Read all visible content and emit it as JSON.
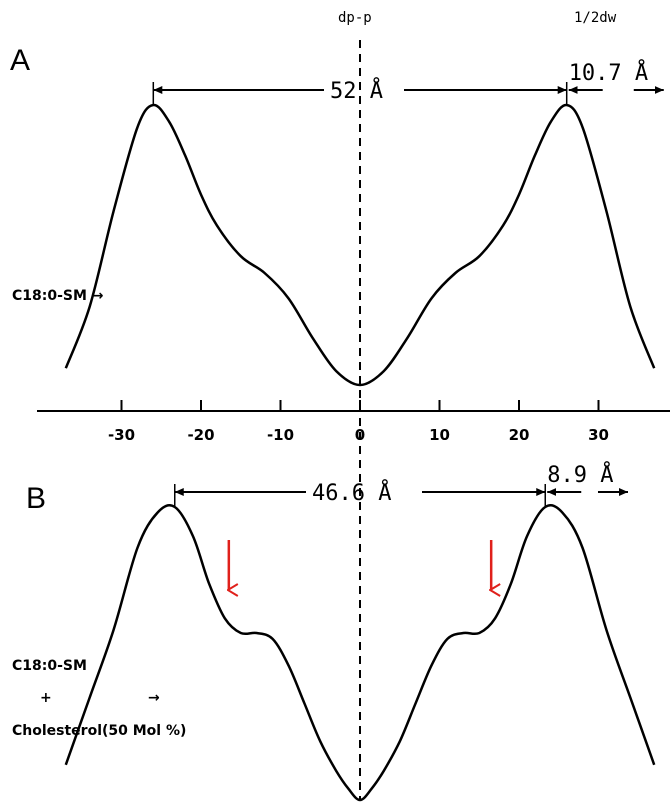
{
  "header": {
    "center_label": "dp-p",
    "right_label": "1/2dw"
  },
  "chart_data": [
    {
      "type": "line",
      "panel_label": "A",
      "sample_label": "C18:0-SM →",
      "xlim": [
        -38,
        38
      ],
      "xticks": [
        -30,
        -20,
        -10,
        0,
        10,
        20,
        30
      ],
      "tick_labels": [
        "-30",
        "-20",
        "-10",
        "0",
        "10",
        "20",
        "30"
      ],
      "measurements": {
        "dp_p": {
          "label": "52 Å",
          "from": -26,
          "to": 26
        },
        "half_dw": {
          "label": "10.7 Å",
          "from": 26,
          "to": 36.7
        }
      },
      "series": [
        {
          "x": [
            -37,
            -34,
            -31,
            -28,
            -26,
            -24,
            -22,
            -20,
            -18,
            -15,
            -12,
            -9,
            -6,
            -3,
            0,
            3,
            6,
            9,
            12,
            15,
            18,
            20,
            22,
            24,
            26,
            28,
            31,
            34,
            37
          ],
          "y": [
            0.06,
            0.28,
            0.62,
            0.92,
            1.0,
            0.94,
            0.82,
            0.68,
            0.57,
            0.46,
            0.4,
            0.31,
            0.17,
            0.05,
            0.0,
            0.05,
            0.17,
            0.31,
            0.4,
            0.46,
            0.57,
            0.68,
            0.82,
            0.94,
            1.0,
            0.92,
            0.62,
            0.28,
            0.06
          ]
        }
      ]
    },
    {
      "type": "line",
      "panel_label": "B",
      "sample_label_lines": [
        "C18:0-SM",
        "+",
        "Cholesterol(50 Mol %)"
      ],
      "sample_arrow": "→",
      "xlim": [
        -38,
        38
      ],
      "measurements": {
        "dp_p": {
          "label": "46.6 Å",
          "from": -23.3,
          "to": 23.3
        },
        "half_dw": {
          "label": "8.9 Å",
          "from": 23.3,
          "to": 32.2
        }
      },
      "annotation_arrows": {
        "x": [
          -16.5,
          16.5
        ],
        "color": "#e0201b"
      },
      "series": [
        {
          "x": [
            -37,
            -34,
            -31,
            -28,
            -25.5,
            -23.3,
            -21,
            -19,
            -17,
            -15,
            -13,
            -11,
            -9,
            -7,
            -5,
            -3,
            -1.5,
            0,
            1.5,
            3,
            5,
            7,
            9,
            11,
            13,
            15,
            17,
            19,
            21,
            23.3,
            25.5,
            28,
            31,
            34,
            37
          ],
          "y": [
            0.12,
            0.35,
            0.58,
            0.86,
            0.98,
            1.0,
            0.9,
            0.74,
            0.62,
            0.57,
            0.57,
            0.55,
            0.46,
            0.33,
            0.2,
            0.1,
            0.04,
            0.0,
            0.04,
            0.1,
            0.2,
            0.33,
            0.46,
            0.55,
            0.57,
            0.57,
            0.62,
            0.74,
            0.9,
            1.0,
            0.98,
            0.86,
            0.58,
            0.35,
            0.12
          ]
        }
      ]
    }
  ]
}
